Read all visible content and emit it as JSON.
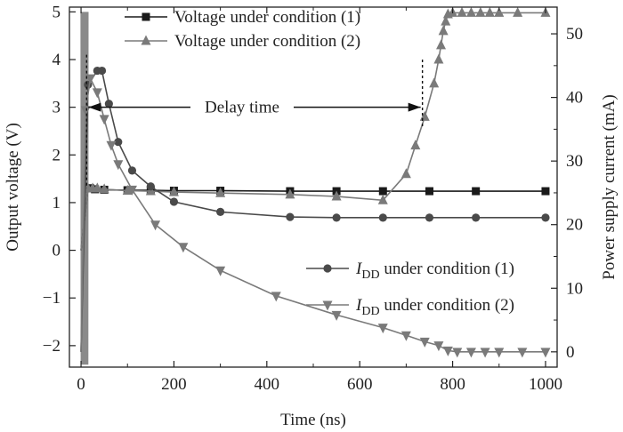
{
  "chart_data": {
    "type": "line",
    "title": "",
    "xlabel": "Time (ns)",
    "ylabel_left": "Output voltage (V)",
    "ylabel_right": "Power supply current (mA)",
    "xlim": [
      -25,
      1025
    ],
    "ylim_left": [
      -2.45,
      5.1
    ],
    "ylim_right": [
      -2.4,
      54.2
    ],
    "x_ticks": [
      0,
      200,
      400,
      600,
      800,
      1000
    ],
    "y_left_ticks": [
      -2,
      -1,
      0,
      1,
      2,
      3,
      4,
      5
    ],
    "y_right_ticks": [
      0,
      10,
      20,
      30,
      40,
      50
    ],
    "grid": false,
    "legends": [
      {
        "placement": "top-left",
        "entries": [
          {
            "label": "Voltage under condition (1)"
          },
          {
            "label": "Voltage under condition (2)"
          }
        ]
      },
      {
        "placement": "center-right",
        "entries": [
          {
            "label_prefix": "I",
            "label_sub": "DD",
            "label_rest": " under condition (1)"
          },
          {
            "label_prefix": "I",
            "label_sub": "DD",
            "label_rest": " under condition (2)"
          }
        ]
      }
    ],
    "annotations": [
      {
        "text": "Delay time",
        "from_x": 12,
        "to_x": 735,
        "y": 3.0
      }
    ],
    "series": [
      {
        "name": "Voltage under condition (1)",
        "axis": "left",
        "color": "#1a1a1a",
        "marker": "square",
        "x": [
          0,
          15,
          20,
          30,
          50,
          100,
          150,
          200,
          300,
          450,
          550,
          650,
          750,
          850,
          1000
        ],
        "y": [
          0,
          1.3,
          1.3,
          1.28,
          1.27,
          1.26,
          1.26,
          1.25,
          1.25,
          1.24,
          1.24,
          1.24,
          1.24,
          1.24,
          1.24
        ]
      },
      {
        "name": "Voltage under condition (2)",
        "axis": "left",
        "color": "#7a7a7a",
        "marker": "triangle-up",
        "x": [
          0,
          15,
          25,
          35,
          50,
          100,
          150,
          200,
          300,
          450,
          550,
          650,
          700,
          720,
          740,
          760,
          770,
          775,
          780,
          785,
          790,
          800,
          820,
          840,
          860,
          880,
          900,
          940,
          1000
        ],
        "y": [
          0,
          1.3,
          1.3,
          1.3,
          1.28,
          1.25,
          1.24,
          1.22,
          1.2,
          1.17,
          1.13,
          1.05,
          1.6,
          2.2,
          2.8,
          3.5,
          4.0,
          4.3,
          4.6,
          4.8,
          4.95,
          4.98,
          4.98,
          4.98,
          4.98,
          4.98,
          4.98,
          4.98,
          4.98
        ]
      },
      {
        "name": "IDD under condition (1)",
        "axis": "right",
        "color": "#4a4a4a",
        "marker": "circle",
        "x": [
          0,
          15,
          35,
          45,
          60,
          80,
          110,
          150,
          200,
          300,
          450,
          550,
          650,
          750,
          850,
          1000
        ],
        "y": [
          0,
          42,
          44.2,
          44.2,
          39,
          33,
          28.5,
          26,
          23.6,
          22,
          21.2,
          21.1,
          21.1,
          21.1,
          21.1,
          21.1
        ]
      },
      {
        "name": "IDD under condition (2)",
        "axis": "right",
        "color": "#7a7a7a",
        "marker": "triangle-down",
        "x": [
          0,
          10,
          20,
          35,
          50,
          65,
          80,
          110,
          160,
          220,
          300,
          420,
          550,
          650,
          700,
          740,
          770,
          790,
          810,
          840,
          870,
          900,
          950,
          1000
        ],
        "y": [
          0,
          38,
          43,
          40.8,
          36.6,
          32.5,
          29.5,
          25.5,
          20,
          16.5,
          12.8,
          8.8,
          5.8,
          3.8,
          2.6,
          1.6,
          1.0,
          0.2,
          0,
          0,
          0,
          0,
          0,
          0
        ]
      }
    ]
  }
}
